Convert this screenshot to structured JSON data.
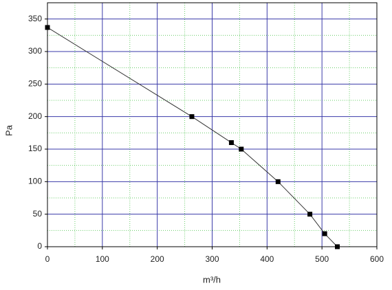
{
  "chart_data": {
    "type": "line",
    "xlabel": "m³/h",
    "ylabel": "Pa",
    "x": [
      0,
      263,
      335,
      353,
      420,
      478,
      505,
      528
    ],
    "series": [
      {
        "color": "#333333",
        "values": [
          337,
          200,
          160,
          150,
          100,
          50,
          20,
          0
        ]
      }
    ],
    "xlim": [
      0,
      600
    ],
    "ylim": [
      0,
      375
    ],
    "xticks": [
      0,
      100,
      200,
      300,
      400,
      500,
      600
    ],
    "yticks": [
      0,
      50,
      100,
      150,
      200,
      250,
      300,
      350
    ],
    "x_minor_ticks": [
      50,
      150,
      250,
      350,
      450,
      550
    ],
    "y_minor_ticks": [
      25,
      75,
      125,
      175,
      225,
      275,
      325,
      375
    ],
    "grid": true,
    "major_grid_color": "#3a3aa8",
    "minor_grid_color": "#66cc66"
  }
}
